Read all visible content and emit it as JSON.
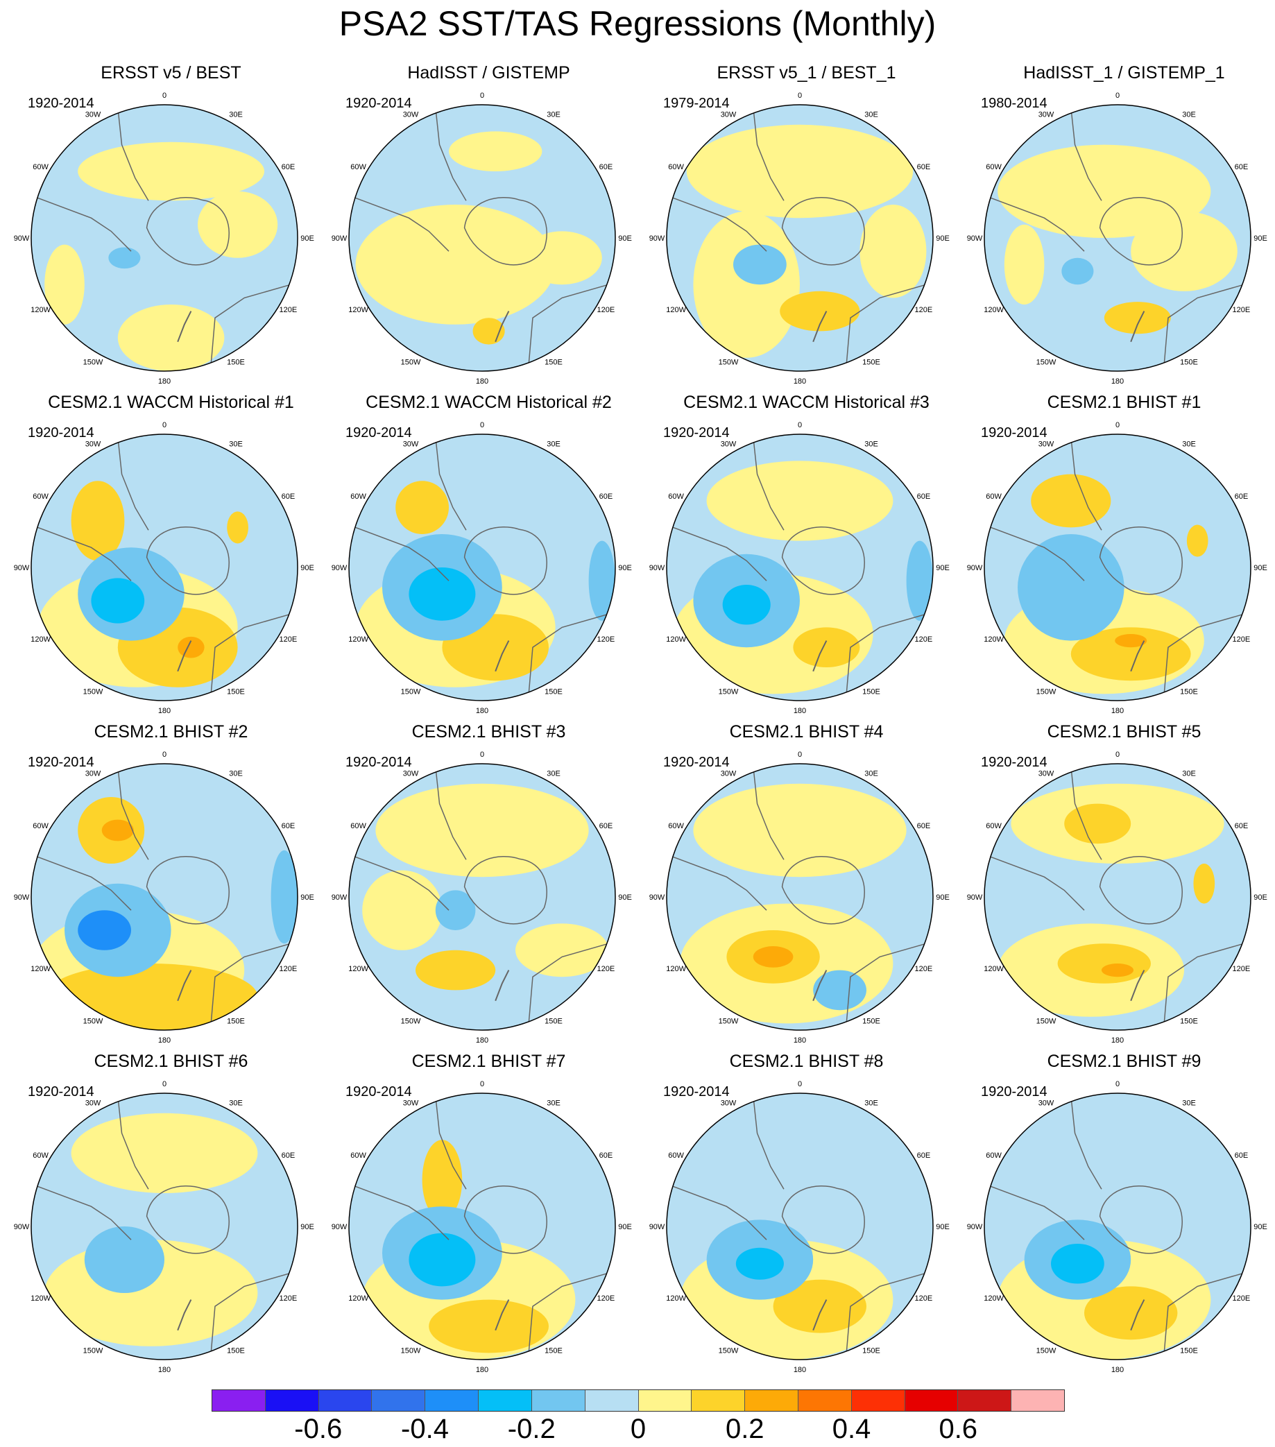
{
  "title": "PSA2 SST/TAS Regressions (Monthly)",
  "panels": [
    {
      "title": "ERSST v5 / BEST",
      "period": "1920-2014",
      "pattern": 0
    },
    {
      "title": "HadISST / GISTEMP",
      "period": "1920-2014",
      "pattern": 1
    },
    {
      "title": "ERSST v5_1 / BEST_1",
      "period": "1979-2014",
      "pattern": 2
    },
    {
      "title": "HadISST_1 / GISTEMP_1",
      "period": "1980-2014",
      "pattern": 3
    },
    {
      "title": "CESM2.1 WACCM Historical #1",
      "period": "1920-2014",
      "pattern": 4
    },
    {
      "title": "CESM2.1 WACCM Historical #2",
      "period": "1920-2014",
      "pattern": 5
    },
    {
      "title": "CESM2.1 WACCM Historical #3",
      "period": "1920-2014",
      "pattern": 6
    },
    {
      "title": "CESM2.1 BHIST #1",
      "period": "1920-2014",
      "pattern": 7
    },
    {
      "title": "CESM2.1 BHIST #2",
      "period": "1920-2014",
      "pattern": 8
    },
    {
      "title": "CESM2.1 BHIST #3",
      "period": "1920-2014",
      "pattern": 9
    },
    {
      "title": "CESM2.1 BHIST #4",
      "period": "1920-2014",
      "pattern": 10
    },
    {
      "title": "CESM2.1 BHIST #5",
      "period": "1920-2014",
      "pattern": 11
    },
    {
      "title": "CESM2.1 BHIST #6",
      "period": "1920-2014",
      "pattern": 12
    },
    {
      "title": "CESM2.1 BHIST #7",
      "period": "1920-2014",
      "pattern": 13
    },
    {
      "title": "CESM2.1 BHIST #8",
      "period": "1920-2014",
      "pattern": 14
    },
    {
      "title": "CESM2.1 BHIST #9",
      "period": "1920-2014",
      "pattern": 15
    }
  ],
  "longitude_labels": [
    "0",
    "30E",
    "60E",
    "90E",
    "120E",
    "150E",
    "180",
    "150W",
    "120W",
    "90W",
    "60W",
    "30W"
  ],
  "colorbar": {
    "colors": [
      "#8a1ff0",
      "#1a10f5",
      "#2a46ee",
      "#3173ec",
      "#1e8ff8",
      "#04bff7",
      "#72c6f0",
      "#b7dff3",
      "#fff58c",
      "#fdd32a",
      "#fdaa08",
      "#fd7603",
      "#fd3005",
      "#e60000",
      "#cd1717",
      "#fdb3b3"
    ],
    "labels": [
      "-0.6",
      "-0.4",
      "-0.2",
      "0",
      "0.2",
      "0.4",
      "0.6"
    ]
  }
}
